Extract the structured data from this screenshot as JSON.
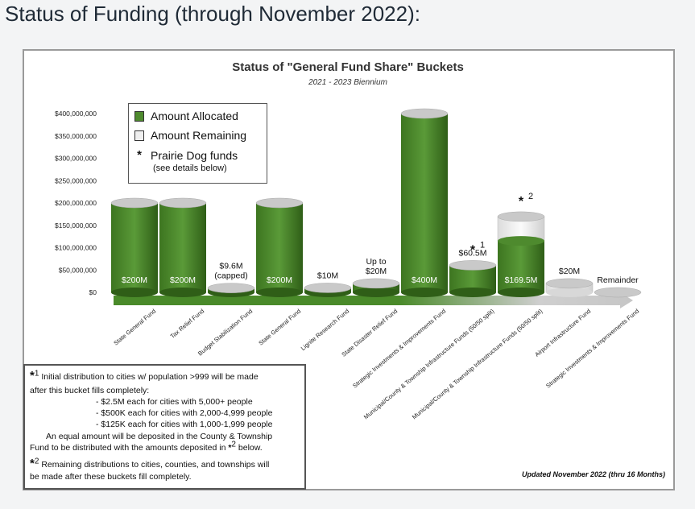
{
  "page": {
    "title": "Status of Funding (through November 2022):"
  },
  "chart_data": {
    "type": "bar",
    "title": "Status of \"General Fund Share\" Buckets",
    "subtitle": "2021 - 2023 Biennium",
    "y_ticks": [
      "$400,000,000",
      "$350,000,000",
      "$300,000,000",
      "$250,000,000",
      "$200,000,000",
      "$150,000,000",
      "$100,000,000",
      "$50,000,000",
      "$0"
    ],
    "ylim": [
      0,
      400000000
    ],
    "categories": [
      "State General Fund",
      "Tax Relief Fund",
      "Budget Stabilization Fund",
      "State General Fund",
      "Lignite Research Fund",
      "State Disaster Relief Fund",
      "Strategic Investments & Improvements Fund",
      "Municipal/County & Township Infrastructure Funds (50/50 split)",
      "Municipal/County & Township Infrastructure Funds (50/50 split)",
      "Airport Infrastructure Fund",
      "Strategic Investments & Improvements Fund"
    ],
    "series": [
      {
        "name": "Amount Allocated",
        "values": [
          200000000,
          200000000,
          9600000,
          200000000,
          10000000,
          20000000,
          400000000,
          60500000,
          115000000,
          0,
          0
        ]
      },
      {
        "name": "Amount Remaining",
        "values": [
          0,
          0,
          0,
          0,
          0,
          0,
          0,
          0,
          54500000,
          20000000,
          0
        ]
      }
    ],
    "bar_labels": [
      "$200M",
      "$200M",
      "$9.6M\n(capped)",
      "$200M",
      "$10M",
      "Up to\n$20M",
      "$400M",
      "$60.5M",
      "$169.5M",
      "$20M",
      "Remainder"
    ],
    "starred": [
      {
        "index": 7,
        "marker": "*",
        "sup": "1"
      },
      {
        "index": 8,
        "marker": "*",
        "sup": "2"
      }
    ],
    "colors": {
      "allocated": "#4e8a2e",
      "allocated_dark": "#2f5e17",
      "remaining": "#efefef",
      "top": "#c9c9c9"
    },
    "legend": {
      "placement": "top-left",
      "items": [
        "Amount Allocated",
        "Amount Remaining",
        "Prairie Dog funds"
      ],
      "sub": "(see details below)"
    }
  },
  "notes": {
    "note1": "Initial distribution to cities w/ population >999 will be made",
    "note1_b": "after this bucket fills completely:",
    "bullet1": "- $2.5M each for cities with 5,000+ people",
    "bullet2": "- $500K each for cities with 2,000-4,999 people",
    "bullet3": "- $125K each for cities with 1,000-1,999 people",
    "equal1": "An equal amount will be deposited in the County & Township",
    "equal2_pre": "Fund to be distributed with the amounts deposited in",
    "equal2_sup": "2",
    "equal2_post": "below.",
    "note2": "Remaining distributions to cities, counties, and townships will",
    "note2_b": "be made after these buckets fill completely.",
    "star": "*",
    "sup1": "1",
    "sup2": "2"
  },
  "updated": "Updated November 2022 (thru 16 Months)"
}
